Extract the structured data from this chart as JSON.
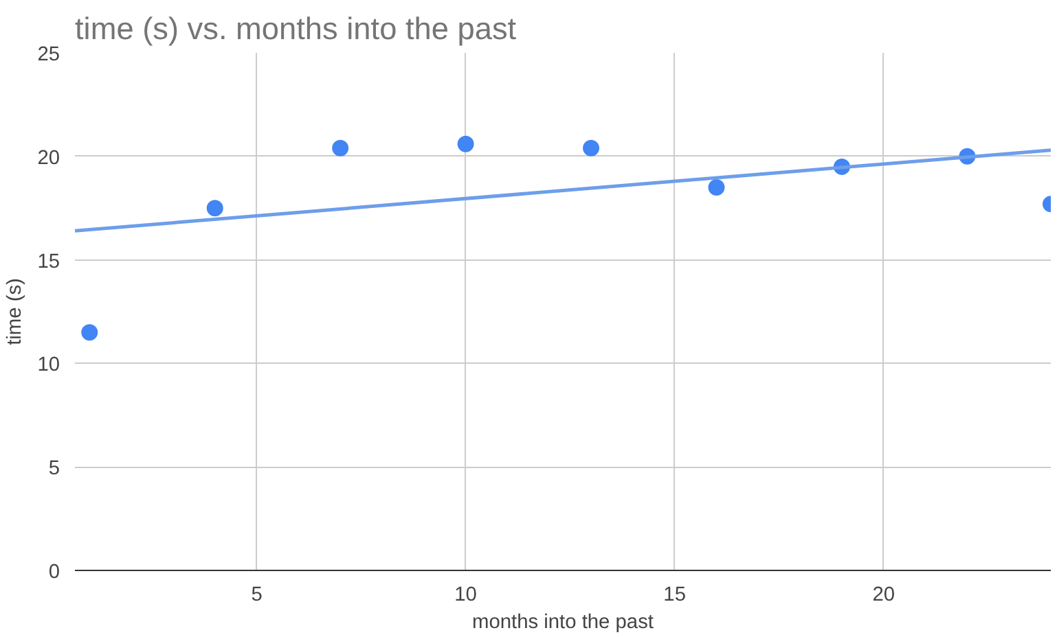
{
  "chart_data": {
    "type": "scatter",
    "title": "time (s) vs. months into the past",
    "xlabel": "months into the past",
    "ylabel": "time (s)",
    "xlim": [
      0.65,
      24
    ],
    "ylim": [
      0,
      25
    ],
    "xticks": [
      5,
      10,
      15,
      20
    ],
    "yticks": [
      0,
      5,
      10,
      15,
      20,
      25
    ],
    "grid": true,
    "series": [
      {
        "marker": "circle",
        "color": "#4285f4",
        "x": [
          1,
          4,
          7,
          10,
          13,
          16,
          19,
          22,
          24
        ],
        "values": [
          11.5,
          17.5,
          20.4,
          20.6,
          20.4,
          18.5,
          19.5,
          20.0,
          17.7
        ]
      },
      {
        "type": "line",
        "color": "#6d9eeb",
        "x": [
          0.65,
          24
        ],
        "values": [
          16.4,
          20.3
        ]
      }
    ]
  }
}
